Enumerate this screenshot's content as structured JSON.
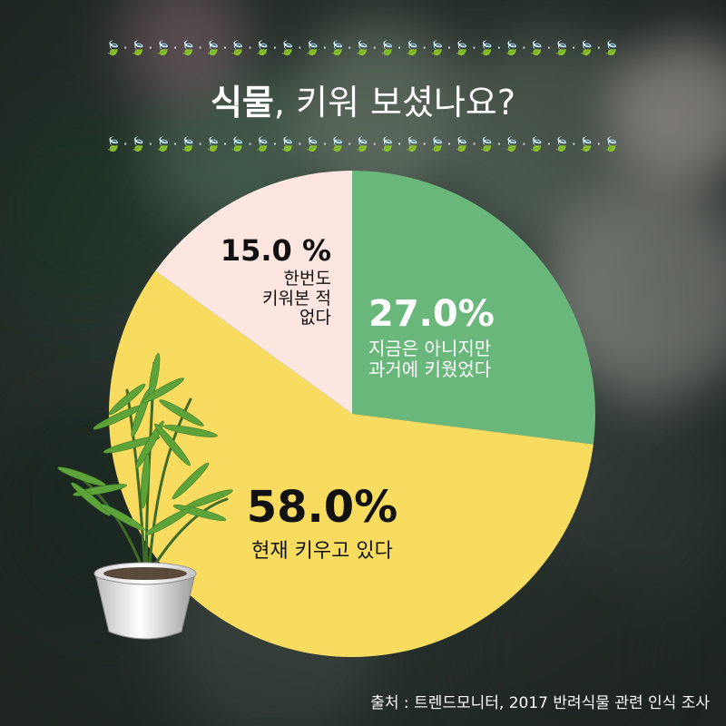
{
  "header": {
    "title_bold": "식물",
    "title_rest": ", 키워 보셨나요?",
    "leaf_row": "🍃·🍃·🍃·🍃·🍃·🍃·🍃·🍃·🍃·🍃·🍃·🍃·🍃·🍃·🍃·🍃·🍃·🍃·🍃·🍃·🍃"
  },
  "chart_data": {
    "type": "pie",
    "slices": [
      {
        "value": 27.0,
        "label_pct": "27.0%",
        "label": [
          "지금은 아니지만",
          "과거에 키웠었다"
        ],
        "color": "#6ab77b"
      },
      {
        "value": 58.0,
        "label_pct": "58.0%",
        "label": [
          "현재 키우고 있다"
        ],
        "color": "#f7dc60"
      },
      {
        "value": 15.0,
        "label_pct": "15.0 %",
        "label": [
          "한번도",
          "키워본 적",
          "없다"
        ],
        "color": "#fde6e0"
      }
    ],
    "start_angle_deg": 0,
    "direction": "clockwise"
  },
  "footer": {
    "source": "출처 : 트렌드모니터, 2017 반려식물 관련 인식 조사"
  },
  "colors": {
    "background": "#2f3a33",
    "text_light": "#ffffff",
    "text_dark": "#111111"
  }
}
